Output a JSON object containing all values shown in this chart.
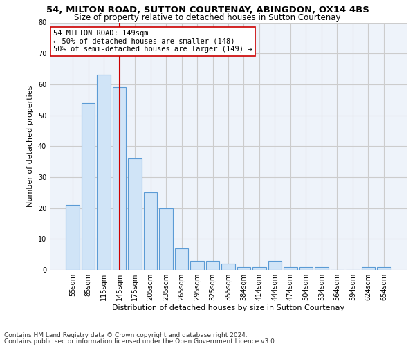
{
  "title1": "54, MILTON ROAD, SUTTON COURTENAY, ABINGDON, OX14 4BS",
  "title2": "Size of property relative to detached houses in Sutton Courtenay",
  "xlabel": "Distribution of detached houses by size in Sutton Courtenay",
  "ylabel": "Number of detached properties",
  "footer1": "Contains HM Land Registry data © Crown copyright and database right 2024.",
  "footer2": "Contains public sector information licensed under the Open Government Licence v3.0.",
  "bar_labels": [
    "55sqm",
    "85sqm",
    "115sqm",
    "145sqm",
    "175sqm",
    "205sqm",
    "235sqm",
    "265sqm",
    "295sqm",
    "325sqm",
    "355sqm",
    "384sqm",
    "414sqm",
    "444sqm",
    "474sqm",
    "504sqm",
    "534sqm",
    "564sqm",
    "594sqm",
    "624sqm",
    "654sqm"
  ],
  "bar_values": [
    21,
    54,
    63,
    59,
    36,
    25,
    20,
    7,
    3,
    3,
    2,
    1,
    1,
    3,
    1,
    1,
    1,
    0,
    0,
    1,
    1
  ],
  "bar_color": "#d0e4f7",
  "bar_edgecolor": "#5b9bd5",
  "annotation_line1": "54 MILTON ROAD: 149sqm",
  "annotation_line2": "← 50% of detached houses are smaller (148)",
  "annotation_line3": "50% of semi-detached houses are larger (149) →",
  "vline_x": 3.0,
  "vline_color": "#cc0000",
  "annotation_box_color": "#ffffff",
  "annotation_box_edgecolor": "#cc0000",
  "ylim": [
    0,
    80
  ],
  "yticks": [
    0,
    10,
    20,
    30,
    40,
    50,
    60,
    70,
    80
  ],
  "grid_color": "#cccccc",
  "background_color": "#eef3fa",
  "title1_fontsize": 9.5,
  "title2_fontsize": 8.5,
  "axis_label_fontsize": 8,
  "tick_fontsize": 7,
  "annotation_fontsize": 7.5,
  "footer_fontsize": 6.5
}
